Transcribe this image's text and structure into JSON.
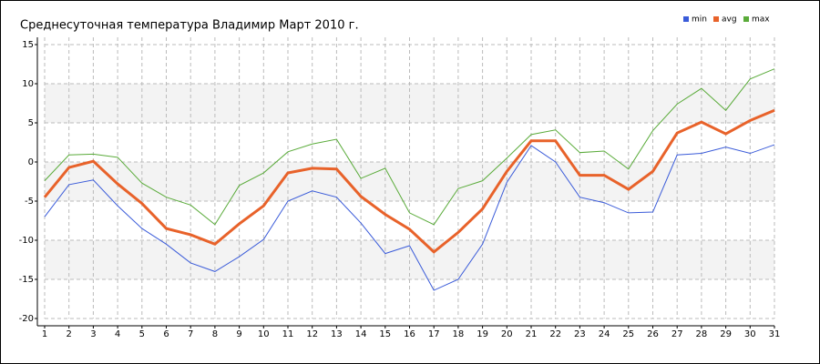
{
  "chart_data": {
    "type": "line",
    "title": "Среднесуточная температура Владимир  Март 2010 г.",
    "x": [
      1,
      2,
      3,
      4,
      5,
      6,
      7,
      8,
      9,
      10,
      11,
      12,
      13,
      14,
      15,
      16,
      17,
      18,
      19,
      20,
      21,
      22,
      23,
      24,
      25,
      26,
      27,
      28,
      29,
      30,
      31
    ],
    "xlim": [
      1,
      31
    ],
    "xticks": [
      1,
      2,
      3,
      4,
      5,
      6,
      7,
      8,
      9,
      10,
      11,
      12,
      13,
      14,
      15,
      16,
      17,
      18,
      19,
      20,
      21,
      22,
      23,
      24,
      25,
      26,
      27,
      28,
      29,
      30,
      31
    ],
    "ylim": [
      -20,
      15
    ],
    "yticks": [
      -20,
      -15,
      -10,
      -5,
      0,
      5,
      10,
      15
    ],
    "grid": true,
    "legend": "top-right",
    "series": [
      {
        "name": "min",
        "color": "#3a5bd9",
        "values": [
          -7.0,
          -2.9,
          -2.3,
          -5.6,
          -8.5,
          -10.5,
          -12.9,
          -14.0,
          -12.1,
          -9.9,
          -5.0,
          -3.7,
          -4.5,
          -7.8,
          -11.7,
          -10.7,
          -16.4,
          -15.0,
          -10.5,
          -2.6,
          2.1,
          0.0,
          -4.5,
          -5.2,
          -6.5,
          -6.4,
          0.9,
          1.1,
          1.9,
          1.1,
          2.2
        ]
      },
      {
        "name": "avg",
        "color": "#e8622a",
        "values": [
          -4.5,
          -0.7,
          0.1,
          -2.8,
          -5.3,
          -8.5,
          -9.3,
          -10.5,
          -7.9,
          -5.6,
          -1.4,
          -0.8,
          -0.9,
          -4.4,
          -6.7,
          -8.6,
          -11.5,
          -9.0,
          -6.0,
          -1.2,
          2.7,
          2.7,
          -1.7,
          -1.7,
          -3.5,
          -1.2,
          3.7,
          5.1,
          3.6,
          5.3,
          6.6
        ]
      },
      {
        "name": "max",
        "color": "#5aab3a",
        "values": [
          -2.4,
          0.9,
          1.0,
          0.6,
          -2.7,
          -4.5,
          -5.5,
          -8.0,
          -3.0,
          -1.4,
          1.3,
          2.3,
          2.9,
          -2.1,
          -0.8,
          -6.5,
          -8.0,
          -3.4,
          -2.4,
          0.5,
          3.5,
          4.1,
          1.2,
          1.4,
          -0.9,
          4.0,
          7.4,
          9.4,
          6.6,
          10.6,
          11.9
        ]
      }
    ]
  }
}
